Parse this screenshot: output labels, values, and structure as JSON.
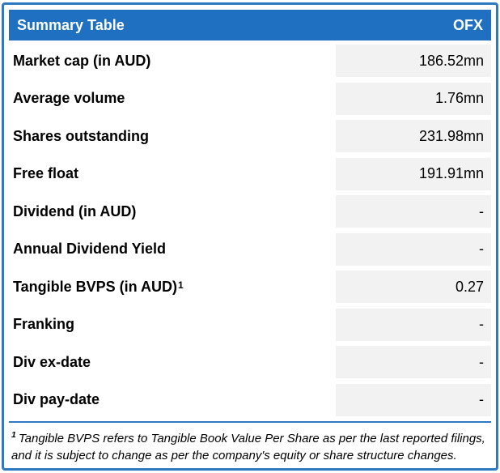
{
  "header": {
    "title": "Summary Table",
    "ticker": "OFX"
  },
  "rows": [
    {
      "label": "Market cap (in AUD)",
      "value": "186.52mn"
    },
    {
      "label": "Average volume",
      "value": "1.76mn"
    },
    {
      "label": "Shares outstanding",
      "value": "231.98mn"
    },
    {
      "label": "Free float",
      "value": "191.91mn"
    },
    {
      "label": "Dividend (in AUD)",
      "value": "-"
    },
    {
      "label": "Annual Dividend Yield",
      "value": "-"
    },
    {
      "label": "Tangible BVPS (in AUD)",
      "sup": "1",
      "value": "0.27"
    },
    {
      "label": "Franking",
      "value": "-"
    },
    {
      "label": "Div ex-date",
      "value": "-"
    },
    {
      "label": "Div pay-date",
      "value": "-"
    }
  ],
  "footnote": {
    "sup": "1",
    "text": "Tangible BVPS refers to Tangible Book Value Per Share as per the last reported filings, and it is subject to change as per the company's equity or share structure changes."
  },
  "colors": {
    "header_bg": "#1F70C0",
    "border": "#2E79C2",
    "cell_bg": "#F2F2F2",
    "header_text": "#FFFFFF",
    "text": "#000000"
  }
}
